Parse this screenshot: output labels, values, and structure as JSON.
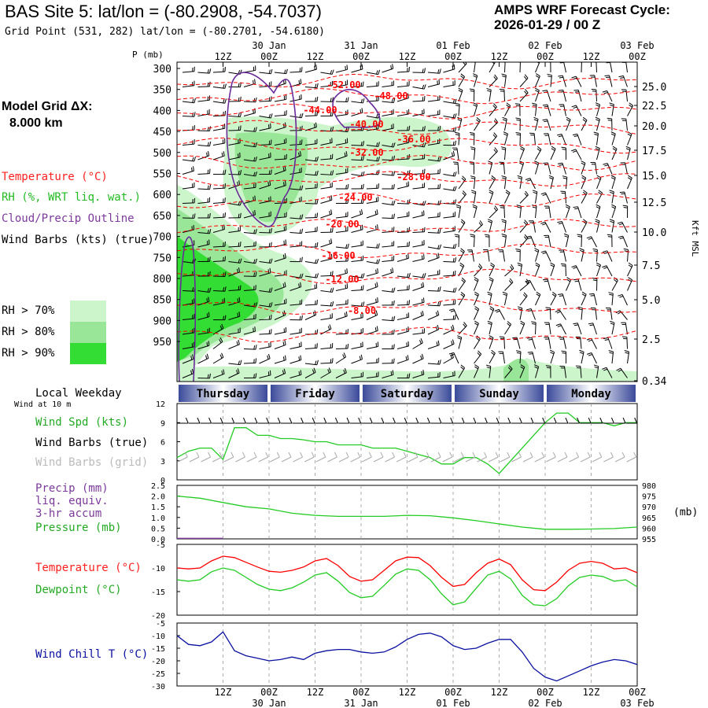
{
  "header": {
    "title": "BAS Site 5:  lat/lon = (-80.2908, -54.7037)",
    "subtitle": "Grid Point (531, 282) lat/lon = (-80.2701, -54.6180)",
    "cycle_line1": "AMPS WRF Forecast Cycle:",
    "cycle_line2": "2026-01-29 / 00  Z"
  },
  "left_legend": {
    "grid_label": "Model Grid ΔX:",
    "grid_value": "8.000 km",
    "temperature": "Temperature (°C)",
    "rh": "RH (%, WRT liq. wat.)",
    "cloud": "Cloud/Precip Outline",
    "wind": "Wind Barbs (kts) (true)",
    "rh70": "RH > 70%",
    "rh80": "RH > 80%",
    "rh90": "RH > 90%"
  },
  "colors": {
    "temperature": "#ff0000",
    "cloud": "#6a2a9a",
    "rh70": "#ccf5cc",
    "rh80": "#99e699",
    "rh90": "#33dd33",
    "green_line": "#22cc22",
    "purple_text": "#7b3a9a",
    "blue_line": "#0a10a0",
    "grid_gray": "#999999",
    "weekday_dark": "#3a4a9a"
  },
  "time_axis": {
    "top_hours": [
      "12Z",
      "00Z",
      "12Z",
      "00Z",
      "12Z",
      "00Z",
      "12Z",
      "00Z",
      "12Z",
      "00Z"
    ],
    "top_dates": [
      "30 Jan",
      "31 Jan",
      "01 Feb",
      "02 Feb",
      "03 Feb"
    ],
    "bottom_hours": [
      "12Z",
      "00Z",
      "12Z",
      "00Z",
      "12Z",
      "00Z",
      "12Z",
      "00Z",
      "12Z",
      "00Z"
    ],
    "bottom_dates": [
      "30 Jan",
      "31 Jan",
      "01 Feb",
      "02 Feb",
      "03 Feb"
    ]
  },
  "pressure_panel": {
    "axis_title": "P (mb)",
    "pressure_labels": [
      "300",
      "350",
      "400",
      "450",
      "500",
      "550",
      "600",
      "650",
      "700",
      "750",
      "800",
      "850",
      "900",
      "950"
    ],
    "height_labels": [
      "25.0",
      "22.5",
      "20.0",
      "17.5",
      "15.0",
      "12.5",
      "10.0",
      "7.5",
      "5.0",
      "2.5",
      "0.34"
    ],
    "right_axis_title": "Kft MSL",
    "temp_labels": [
      "-52.00",
      "-48.00",
      "-44.00",
      "-40.00",
      "-36.00",
      "-32.00",
      "-28.00",
      "-24.00",
      "-20.00",
      "-16.00",
      "-12.00",
      "-8.00"
    ]
  },
  "weekday_bar": {
    "label": "Local Weekday",
    "days": [
      "Thursday",
      "Friday",
      "Saturday",
      "Sunday",
      "Monday"
    ]
  },
  "wind10m": {
    "title": "Wind at 10 m",
    "legend_speed": "Wind Spd (kts)",
    "legend_barbs_true": "Wind Barbs (true)",
    "legend_barbs_grid": "Wind Barbs (grid)",
    "ticks": [
      "12",
      "9",
      "6",
      "3",
      "0"
    ]
  },
  "precip_panel": {
    "legend_precip": "Precip (mm)",
    "legend_liq": "liq. equiv.",
    "legend_accum": "3-hr accum",
    "legend_pressure": "Pressure (mb)",
    "left_ticks": [
      "2.5",
      "2.0",
      "1.5",
      "1.0",
      "0.5",
      "0.0"
    ],
    "right_ticks": [
      "980",
      "975",
      "970",
      "965",
      "960",
      "955"
    ],
    "right_unit": "(mb)"
  },
  "temp_panel": {
    "legend_temp": "Temperature (°C)",
    "legend_dew": "Dewpoint (°C)",
    "ticks": [
      "-5",
      "-10",
      "-15",
      "-20"
    ]
  },
  "windchill_panel": {
    "legend": "Wind Chill T (°C)",
    "ticks": [
      "-5",
      "-10",
      "-15",
      "-20",
      "-25",
      "-30"
    ]
  },
  "chart_data": [
    {
      "type": "line",
      "title": "Wind at 10 m",
      "x": [
        0,
        3,
        6,
        9,
        12,
        15,
        18,
        21,
        24,
        27,
        30,
        33,
        36,
        39,
        42,
        45,
        48,
        51,
        54,
        57,
        60,
        63,
        66,
        69,
        72,
        75,
        78,
        81,
        84,
        87,
        90,
        93,
        96,
        99,
        102,
        105,
        108,
        111,
        114,
        117,
        120
      ],
      "series": [
        {
          "name": "Wind Spd (kts)",
          "values": [
            3.5,
            4.5,
            5.0,
            5.0,
            3.2,
            8.2,
            8.2,
            7.0,
            7.0,
            6.5,
            6.5,
            6.3,
            6.0,
            6.0,
            5.5,
            5.5,
            5.5,
            5.0,
            5.0,
            5.0,
            4.5,
            4.0,
            3.5,
            2.5,
            2.5,
            3.5,
            3.5,
            2.5,
            1.0,
            3.0,
            5.0,
            7.0,
            9.0,
            10.5,
            10.5,
            9.0,
            9.0,
            9.0,
            8.5,
            9.0,
            9.0
          ]
        }
      ],
      "ylim": [
        0,
        12
      ]
    },
    {
      "type": "line",
      "title": "Precip / Pressure",
      "x": [
        0,
        6,
        12,
        18,
        24,
        30,
        36,
        42,
        48,
        54,
        60,
        66,
        72,
        78,
        84,
        90,
        96,
        102,
        108,
        114,
        120
      ],
      "series": [
        {
          "name": "Pressure (mb)",
          "values": [
            975.0,
            974.0,
            972.0,
            970.0,
            969.0,
            967.0,
            966.0,
            965.5,
            965.5,
            965.5,
            966.0,
            965.8,
            964.8,
            963.5,
            962.0,
            960.5,
            959.5,
            959.5,
            959.6,
            959.8,
            960.5
          ]
        },
        {
          "name": "Precip (mm)",
          "values": [
            0.05,
            0.05,
            0.0,
            0.0,
            0.0,
            0.0,
            0.0,
            0.0,
            0.0,
            0.0,
            0.0,
            0.0,
            0.0,
            0.0,
            0.0,
            0.0,
            0.0,
            0.0,
            0.0,
            0.0,
            0.0
          ]
        }
      ],
      "ylim": [
        0,
        2.5
      ],
      "y2lim": [
        955,
        980
      ]
    },
    {
      "type": "line",
      "title": "Temperature / Dewpoint",
      "x": [
        0,
        3,
        6,
        9,
        12,
        15,
        18,
        21,
        24,
        27,
        30,
        33,
        36,
        39,
        42,
        45,
        48,
        51,
        54,
        57,
        60,
        63,
        66,
        69,
        72,
        75,
        78,
        81,
        84,
        87,
        90,
        93,
        96,
        99,
        102,
        105,
        108,
        111,
        114,
        117,
        120
      ],
      "series": [
        {
          "name": "Temperature (°C)",
          "values": [
            -10.0,
            -10.2,
            -10.0,
            -8.5,
            -7.5,
            -7.8,
            -8.8,
            -9.8,
            -10.7,
            -10.9,
            -10.5,
            -9.8,
            -8.5,
            -8.0,
            -9.5,
            -11.8,
            -12.8,
            -12.5,
            -10.5,
            -8.5,
            -7.7,
            -7.8,
            -9.5,
            -12.0,
            -13.9,
            -13.5,
            -11.0,
            -9.0,
            -8.1,
            -9.3,
            -12.5,
            -14.6,
            -14.8,
            -13.0,
            -10.5,
            -9.0,
            -8.6,
            -9.0,
            -10.2,
            -10.0,
            -11.0
          ]
        },
        {
          "name": "Dewpoint (°C)",
          "values": [
            -12.5,
            -12.8,
            -12.5,
            -10.8,
            -10.0,
            -10.5,
            -12.0,
            -13.5,
            -14.5,
            -14.8,
            -14.2,
            -13.0,
            -11.5,
            -11.0,
            -12.8,
            -15.2,
            -16.3,
            -16.0,
            -13.7,
            -11.3,
            -10.2,
            -10.5,
            -12.5,
            -15.5,
            -17.8,
            -17.2,
            -14.3,
            -11.5,
            -10.7,
            -12.3,
            -15.8,
            -17.8,
            -18.0,
            -16.5,
            -13.8,
            -12.0,
            -11.5,
            -11.8,
            -12.8,
            -12.5,
            -14.0
          ]
        }
      ],
      "ylim": [
        -20,
        -5
      ]
    },
    {
      "type": "line",
      "title": "Wind Chill T (°C)",
      "x": [
        0,
        3,
        6,
        9,
        12,
        15,
        18,
        21,
        24,
        27,
        30,
        33,
        36,
        39,
        42,
        45,
        48,
        51,
        54,
        57,
        60,
        63,
        66,
        69,
        72,
        75,
        78,
        81,
        84,
        87,
        90,
        93,
        96,
        99,
        102,
        105,
        108,
        111,
        114,
        117,
        120
      ],
      "series": [
        {
          "name": "Wind Chill T (°C)",
          "values": [
            -10.0,
            -13.5,
            -14.0,
            -12.5,
            -8.5,
            -16.0,
            -18.0,
            -19.0,
            -20.0,
            -19.5,
            -18.5,
            -19.5,
            -17.0,
            -16.0,
            -15.5,
            -15.5,
            -16.5,
            -17.0,
            -16.5,
            -14.5,
            -11.5,
            -9.5,
            -9.0,
            -10.5,
            -14.0,
            -15.5,
            -15.0,
            -13.0,
            -11.5,
            -11.5,
            -16.5,
            -23.0,
            -26.5,
            -28.0,
            -26.0,
            -24.0,
            -22.0,
            -20.5,
            -19.5,
            -20.0,
            -21.5
          ]
        }
      ],
      "ylim": [
        -30,
        -5
      ]
    }
  ]
}
